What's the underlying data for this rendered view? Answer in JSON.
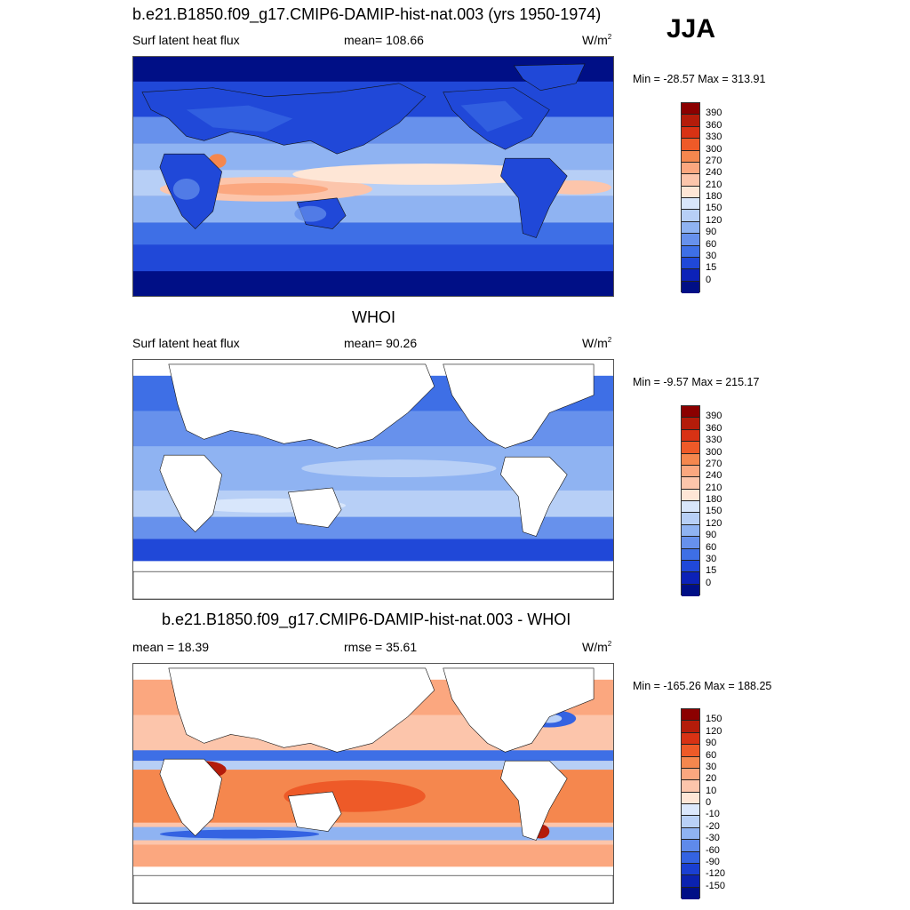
{
  "season": "JJA",
  "panels": [
    {
      "title": "b.e21.B1850.f09_g17.CMIP6-DAMIP-hist-nat.003 (yrs 1950-1974)",
      "left_label": "Surf latent heat flux",
      "center_label": "mean= 108.66",
      "units": "W/m",
      "units_sup": "2",
      "minmax": "Min = -28.57 Max = 313.91",
      "map_kind": "model",
      "colorbar": {
        "labels": [
          "390",
          "360",
          "330",
          "300",
          "270",
          "240",
          "210",
          "180",
          "150",
          "120",
          "90",
          "60",
          "30",
          "15",
          "0"
        ],
        "colors": [
          "#8b0000",
          "#b41c0a",
          "#d83214",
          "#ee5a28",
          "#f5874e",
          "#fba77f",
          "#fcc5ab",
          "#fee6d6",
          "#d8e6fb",
          "#b7cff6",
          "#8fb3f2",
          "#6791ec",
          "#3e6fe6",
          "#2048d8",
          "#0c22b8",
          "#000f86"
        ]
      }
    },
    {
      "title": "WHOI",
      "left_label": "Surf latent heat flux",
      "center_label": "mean=  90.26",
      "units": "W/m",
      "units_sup": "2",
      "minmax": "Min =  -9.57 Max = 215.17",
      "map_kind": "obs",
      "colorbar": {
        "labels": [
          "390",
          "360",
          "330",
          "300",
          "270",
          "240",
          "210",
          "180",
          "150",
          "120",
          "90",
          "60",
          "30",
          "15",
          "0"
        ],
        "colors": [
          "#8b0000",
          "#b41c0a",
          "#d83214",
          "#ee5a28",
          "#f5874e",
          "#fba77f",
          "#fcc5ab",
          "#fee6d6",
          "#d8e6fb",
          "#b7cff6",
          "#8fb3f2",
          "#6791ec",
          "#3e6fe6",
          "#2048d8",
          "#0c22b8",
          "#000f86"
        ]
      }
    },
    {
      "title": "b.e21.B1850.f09_g17.CMIP6-DAMIP-hist-nat.003 - WHOI",
      "left_label": "mean =  18.39",
      "center_label": "rmse =  35.61",
      "units": "W/m",
      "units_sup": "2",
      "minmax": "Min = -165.26 Max = 188.25",
      "map_kind": "diff",
      "colorbar": {
        "labels": [
          "150",
          "120",
          "90",
          "60",
          "30",
          "20",
          "10",
          "0",
          "-10",
          "-20",
          "-30",
          "-60",
          "-90",
          "-120",
          "-150"
        ],
        "colors": [
          "#8b0000",
          "#b41c0a",
          "#d83214",
          "#ee5a28",
          "#f5874e",
          "#fba77f",
          "#fcc5ab",
          "#fee6d6",
          "#dbe8fc",
          "#b9d1f7",
          "#8fb3f2",
          "#5f8aea",
          "#3463e2",
          "#1a3fd2",
          "#0b22b0",
          "#000f86"
        ]
      }
    }
  ]
}
